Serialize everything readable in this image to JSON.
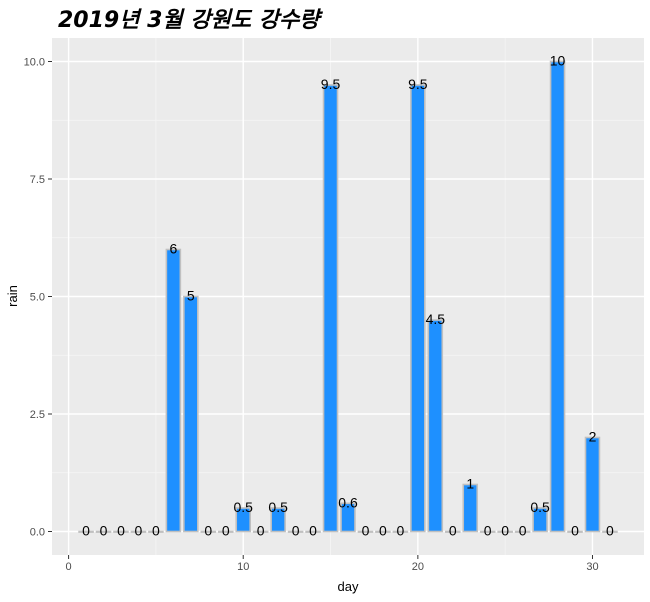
{
  "chart_data": {
    "type": "bar",
    "title": "2019년 3월 강원도 강수량",
    "xlabel": "day",
    "ylabel": "rain",
    "x": [
      1,
      2,
      3,
      4,
      5,
      6,
      7,
      8,
      9,
      10,
      11,
      12,
      13,
      14,
      15,
      16,
      17,
      18,
      19,
      20,
      21,
      22,
      23,
      24,
      25,
      26,
      27,
      28,
      29,
      30,
      31
    ],
    "values": [
      0,
      0,
      0,
      0,
      0,
      6,
      5,
      0,
      0,
      0.5,
      0,
      0.5,
      0,
      0,
      9.5,
      0.6,
      0,
      0,
      0,
      9.5,
      4.5,
      0,
      1,
      0,
      0,
      0,
      0.5,
      10,
      0,
      2,
      0
    ],
    "labels": [
      "0",
      "0",
      "0",
      "0",
      "0",
      "6",
      "5",
      "0",
      "0",
      "0.5",
      "0",
      "0.5",
      "0",
      "0",
      "9.5",
      "0.6",
      "0",
      "0",
      "0",
      "9.5",
      "4.5",
      "0",
      "1",
      "0",
      "0",
      "0",
      "0.5",
      "10",
      "0",
      "2",
      "0"
    ],
    "xticks": [
      "0",
      "10",
      "20",
      "30"
    ],
    "yticks": [
      "0.0",
      "2.5",
      "5.0",
      "7.5",
      "10.0"
    ],
    "xlim": [
      -0.95,
      32.95
    ],
    "ylim": [
      -0.5,
      10.5
    ],
    "bar_color": "#1E90FF",
    "bar_border_color": "#C0C0C0",
    "panel_background": "#EBEBEB",
    "grid": true,
    "legend": "none"
  }
}
